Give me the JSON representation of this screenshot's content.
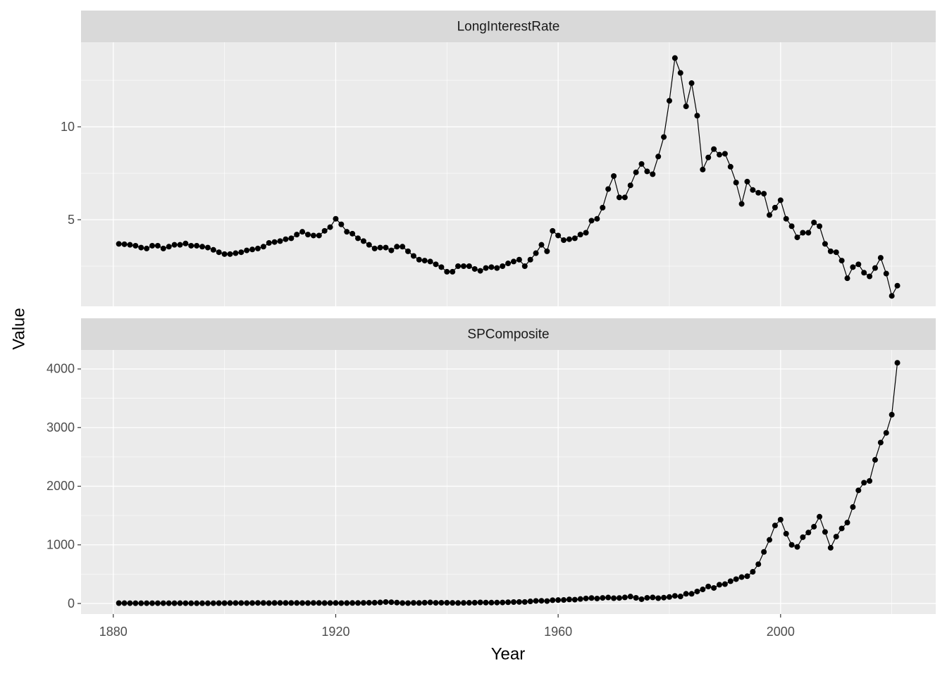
{
  "chart_data": {
    "type": "line",
    "xlabel": "Year",
    "ylabel": "Value",
    "color": "#000000",
    "grid": true,
    "xlim": [
      1874.2,
      2027.9
    ],
    "xticks": [
      1880,
      1920,
      1960,
      2000
    ],
    "x": [
      1881,
      1882,
      1883,
      1884,
      1885,
      1886,
      1887,
      1888,
      1889,
      1890,
      1891,
      1892,
      1893,
      1894,
      1895,
      1896,
      1897,
      1898,
      1899,
      1900,
      1901,
      1902,
      1903,
      1904,
      1905,
      1906,
      1907,
      1908,
      1909,
      1910,
      1911,
      1912,
      1913,
      1914,
      1915,
      1916,
      1917,
      1918,
      1919,
      1920,
      1921,
      1922,
      1923,
      1924,
      1925,
      1926,
      1927,
      1928,
      1929,
      1930,
      1931,
      1932,
      1933,
      1934,
      1935,
      1936,
      1937,
      1938,
      1939,
      1940,
      1941,
      1942,
      1943,
      1944,
      1945,
      1946,
      1947,
      1948,
      1949,
      1950,
      1951,
      1952,
      1953,
      1954,
      1955,
      1956,
      1957,
      1958,
      1959,
      1960,
      1961,
      1962,
      1963,
      1964,
      1965,
      1966,
      1967,
      1968,
      1969,
      1970,
      1971,
      1972,
      1973,
      1974,
      1975,
      1976,
      1977,
      1978,
      1979,
      1980,
      1981,
      1982,
      1983,
      1984,
      1985,
      1986,
      1987,
      1988,
      1989,
      1990,
      1991,
      1992,
      1993,
      1994,
      1995,
      1996,
      1997,
      1998,
      1999,
      2000,
      2001,
      2002,
      2003,
      2004,
      2005,
      2006,
      2007,
      2008,
      2009,
      2010,
      2011,
      2012,
      2013,
      2014,
      2015,
      2016,
      2017,
      2018,
      2019,
      2020,
      2021
    ],
    "facets": [
      {
        "name": "LongInterestRate",
        "ylim": [
          0.34,
          14.55
        ],
        "yticks": [
          5,
          10
        ],
        "values": [
          3.7,
          3.68,
          3.65,
          3.6,
          3.5,
          3.45,
          3.6,
          3.6,
          3.45,
          3.55,
          3.65,
          3.65,
          3.72,
          3.6,
          3.6,
          3.55,
          3.5,
          3.38,
          3.25,
          3.15,
          3.15,
          3.2,
          3.25,
          3.35,
          3.4,
          3.45,
          3.55,
          3.75,
          3.8,
          3.85,
          3.95,
          4.0,
          4.2,
          4.35,
          4.2,
          4.15,
          4.15,
          4.4,
          4.6,
          5.05,
          4.75,
          4.35,
          4.25,
          4.0,
          3.85,
          3.65,
          3.45,
          3.5,
          3.5,
          3.35,
          3.55,
          3.55,
          3.3,
          3.05,
          2.85,
          2.8,
          2.75,
          2.6,
          2.45,
          2.2,
          2.2,
          2.5,
          2.5,
          2.5,
          2.35,
          2.25,
          2.4,
          2.45,
          2.4,
          2.5,
          2.65,
          2.75,
          2.85,
          2.5,
          2.85,
          3.2,
          3.65,
          3.3,
          4.4,
          4.15,
          3.9,
          3.95,
          4.0,
          4.2,
          4.3,
          4.95,
          5.05,
          5.65,
          6.65,
          7.35,
          6.2,
          6.2,
          6.85,
          7.55,
          8.0,
          7.6,
          7.45,
          8.4,
          9.45,
          11.4,
          13.7,
          12.9,
          11.1,
          12.35,
          10.6,
          7.7,
          8.35,
          8.8,
          8.5,
          8.55,
          7.85,
          7.0,
          5.85,
          7.05,
          6.6,
          6.45,
          6.4,
          5.25,
          5.65,
          6.05,
          5.05,
          4.65,
          4.05,
          4.3,
          4.3,
          4.85,
          4.65,
          3.7,
          3.3,
          3.25,
          2.8,
          1.85,
          2.45,
          2.6,
          2.15,
          1.95,
          2.4,
          2.95,
          2.1,
          0.9,
          1.45
        ]
      },
      {
        "name": "SPComposite",
        "ylim": [
          -180,
          4324
        ],
        "yticks": [
          0,
          1000,
          2000,
          3000,
          4000
        ],
        "values": [
          6.2,
          5.9,
          5.2,
          4.6,
          4.2,
          4.9,
          5.3,
          4.9,
          4.9,
          5.1,
          4.8,
          5.5,
          5.1,
          4.3,
          4.4,
          4.3,
          4.3,
          4.9,
          6.1,
          6.1,
          7.1,
          8.1,
          7.9,
          6.6,
          8.3,
          9.6,
          9.3,
          6.9,
          9.1,
          9.5,
          9.1,
          9.1,
          8.5,
          8.0,
          7.5,
          9.4,
          9.0,
          7.2,
          7.9,
          8.8,
          6.9,
          7.3,
          8.8,
          8.8,
          10.6,
          12.5,
          13.4,
          17.5,
          24.9,
          21.7,
          15.0,
          8.3,
          6.9,
          10.6,
          9.1,
          13.8,
          17.6,
          11.3,
          12.5,
          12.3,
          10.6,
          8.9,
          10.1,
          11.9,
          13.5,
          18.0,
          15.2,
          14.8,
          15.4,
          16.9,
          21.2,
          24.2,
          26.2,
          25.5,
          35.6,
          44.2,
          45.4,
          41.1,
          55.6,
          58.0,
          59.7,
          69.1,
          65.1,
          76.5,
          86.1,
          93.3,
          84.5,
          95.0,
          102.0,
          90.3,
          93.5,
          103.3,
          118.4,
          96.1,
          72.6,
          96.9,
          103.8,
          90.3,
          99.7,
          110.9,
          130,
          120,
          165,
          165,
          205,
          240,
          290,
          265,
          320,
          330,
          380,
          415,
          450,
          465,
          540,
          670,
          880,
          1085,
          1330,
          1430,
          1190,
          1000,
          965,
          1130,
          1210,
          1310,
          1480,
          1220,
          950,
          1140,
          1280,
          1380,
          1645,
          1930,
          2060,
          2090,
          2450,
          2745,
          2910,
          3220,
          4105
        ]
      }
    ]
  }
}
